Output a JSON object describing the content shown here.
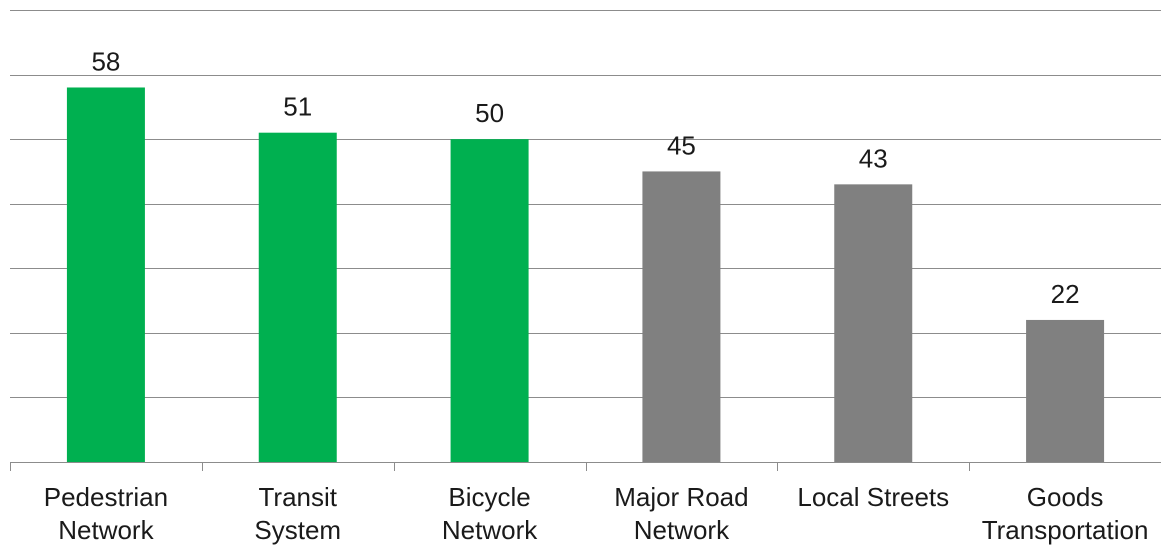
{
  "chart_data": {
    "type": "bar",
    "categories": [
      [
        "Pedestrian",
        "Network"
      ],
      [
        "Transit",
        "System"
      ],
      [
        "Bicycle",
        "Network"
      ],
      [
        "Major Road",
        "Network"
      ],
      [
        "Local Streets"
      ],
      [
        "Goods",
        "Transportation"
      ]
    ],
    "values": [
      58,
      51,
      50,
      45,
      43,
      22
    ],
    "bar_colors": [
      "#00b050",
      "#00b050",
      "#00b050",
      "#808080",
      "#808080",
      "#808080"
    ],
    "ylim": [
      0,
      70
    ],
    "y_gridline_step": 10,
    "grid": true,
    "legend": "none",
    "title": "",
    "xlabel": "",
    "ylabel": ""
  }
}
